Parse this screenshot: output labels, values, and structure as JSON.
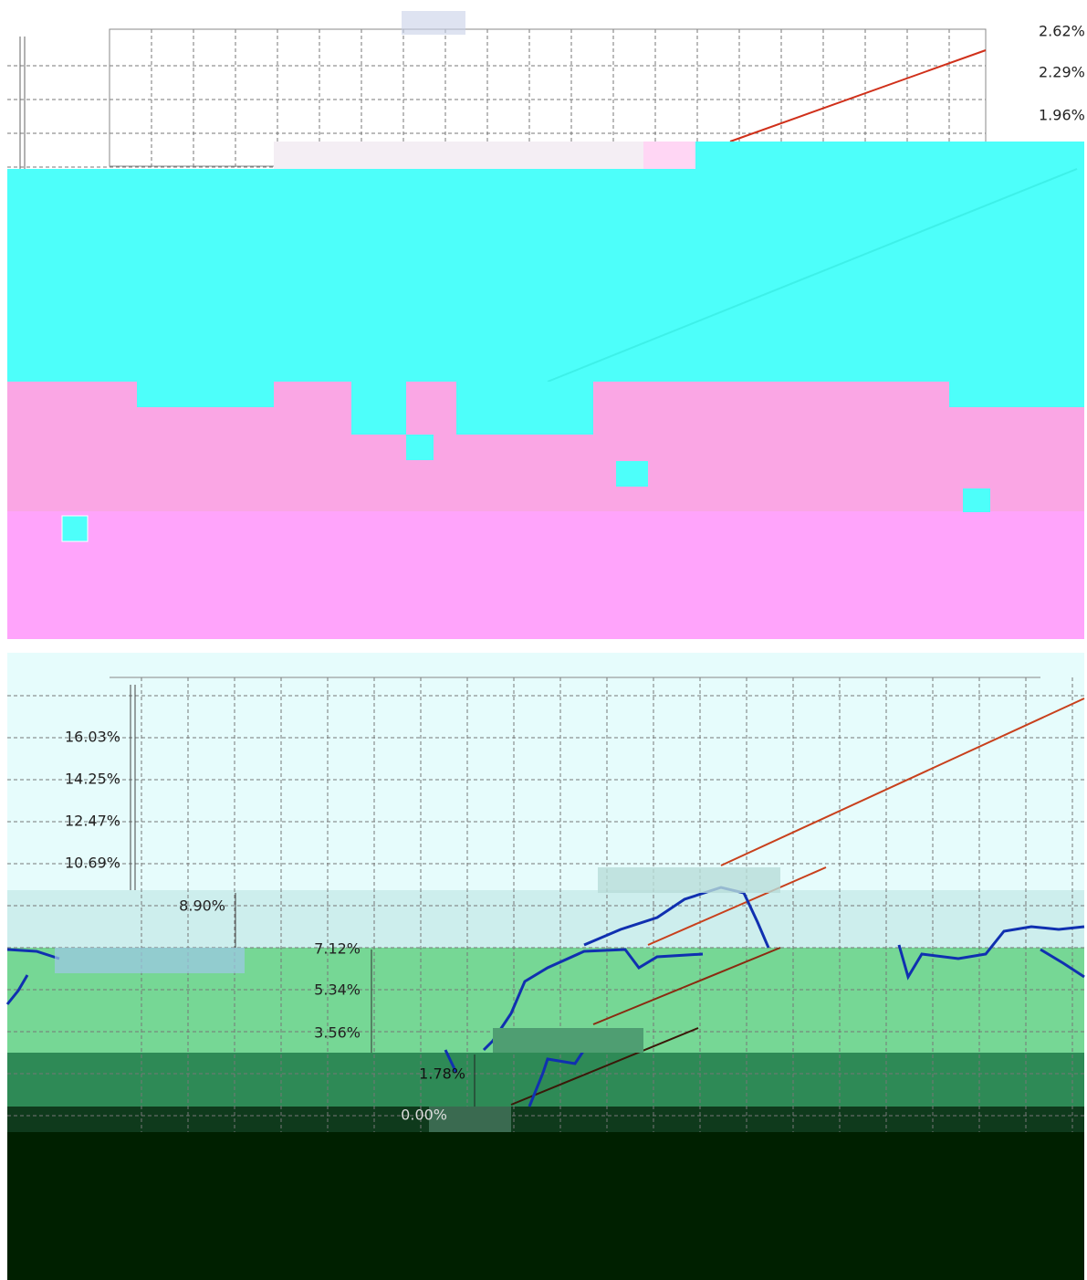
{
  "top_panel": {
    "y_labels": [
      "2.62%",
      "2.29%",
      "1.96%"
    ]
  },
  "bottom_panel": {
    "y_labels": [
      "16.03%",
      "14.25%",
      "12.47%",
      "10.69%",
      "8.90%",
      "7.12%",
      "5.34%",
      "3.56%",
      "1.78%",
      "0.00%"
    ]
  }
}
